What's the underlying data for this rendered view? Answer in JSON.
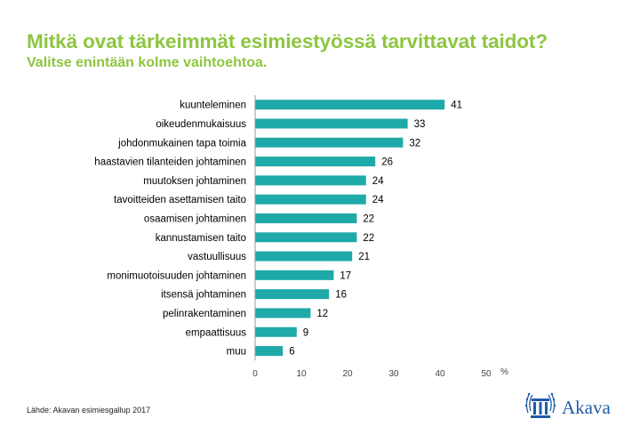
{
  "header": {
    "title": "Mitkä ovat tärkeimmät esimiestyössä tarvittavat taidot?",
    "subtitle": "Valitse enintään kolme vaihtoehtoa."
  },
  "chart_data": {
    "type": "bar",
    "orientation": "horizontal",
    "categories": [
      "kuunteleminen",
      "oikeudenmukaisuus",
      "johdonmukainen tapa toimia",
      "haastavien tilanteiden johtaminen",
      "muutoksen johtaminen",
      "tavoitteiden asettamisen taito",
      "osaamisen johtaminen",
      "kannustamisen taito",
      "vastuullisuus",
      "monimuotoisuuden johtaminen",
      "itsensä johtaminen",
      "pelinrakentaminen",
      "empaattisuus",
      "muu"
    ],
    "values": [
      41,
      33,
      32,
      26,
      24,
      24,
      22,
      22,
      21,
      17,
      16,
      12,
      9,
      6
    ],
    "xlim": [
      0,
      50
    ],
    "xticks": [
      0,
      10,
      20,
      30,
      40,
      50
    ],
    "xunit": "%",
    "bar_color": "#1fa9a9",
    "grid": false
  },
  "footer": {
    "source": "Lähde: Akavan esimiesgallup 2017",
    "logo_text": "Akava",
    "logo_color": "#1f5ca8"
  }
}
